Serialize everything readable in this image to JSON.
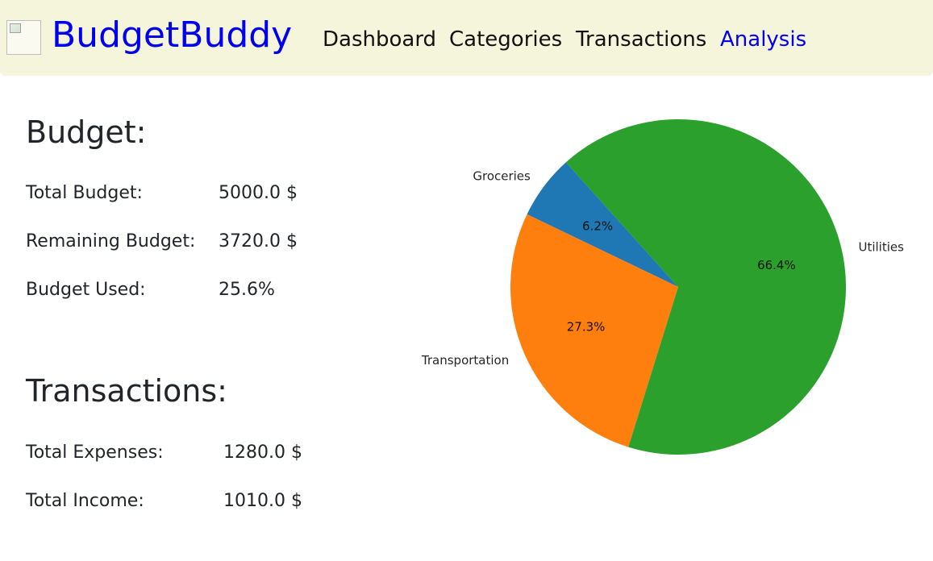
{
  "brand": {
    "name": "BudgetBuddy"
  },
  "nav": {
    "items": [
      {
        "label": "Dashboard",
        "active": false
      },
      {
        "label": "Categories",
        "active": false
      },
      {
        "label": "Transactions",
        "active": false
      },
      {
        "label": "Analysis",
        "active": true
      }
    ]
  },
  "budget": {
    "heading": "Budget:",
    "rows": [
      {
        "label": "Total Budget:",
        "value": "5000.0 $"
      },
      {
        "label": "Remaining Budget:",
        "value": "3720.0 $"
      },
      {
        "label": "Budget Used:",
        "value": "25.6%"
      }
    ]
  },
  "transactions": {
    "heading": "Transactions:",
    "rows": [
      {
        "label": "Total Expenses:",
        "value": "1280.0 $"
      },
      {
        "label": "Total Income:",
        "value": "1010.0 $"
      }
    ]
  },
  "chart_data": {
    "type": "pie",
    "categories": [
      "Groceries",
      "Transportation",
      "Utilities"
    ],
    "values": [
      6.2,
      27.3,
      66.4
    ],
    "value_labels": [
      "6.2%",
      "27.3%",
      "66.4%"
    ],
    "colors": [
      "#1f77b4",
      "#ff7f0e",
      "#2ca02c"
    ],
    "title": ""
  }
}
